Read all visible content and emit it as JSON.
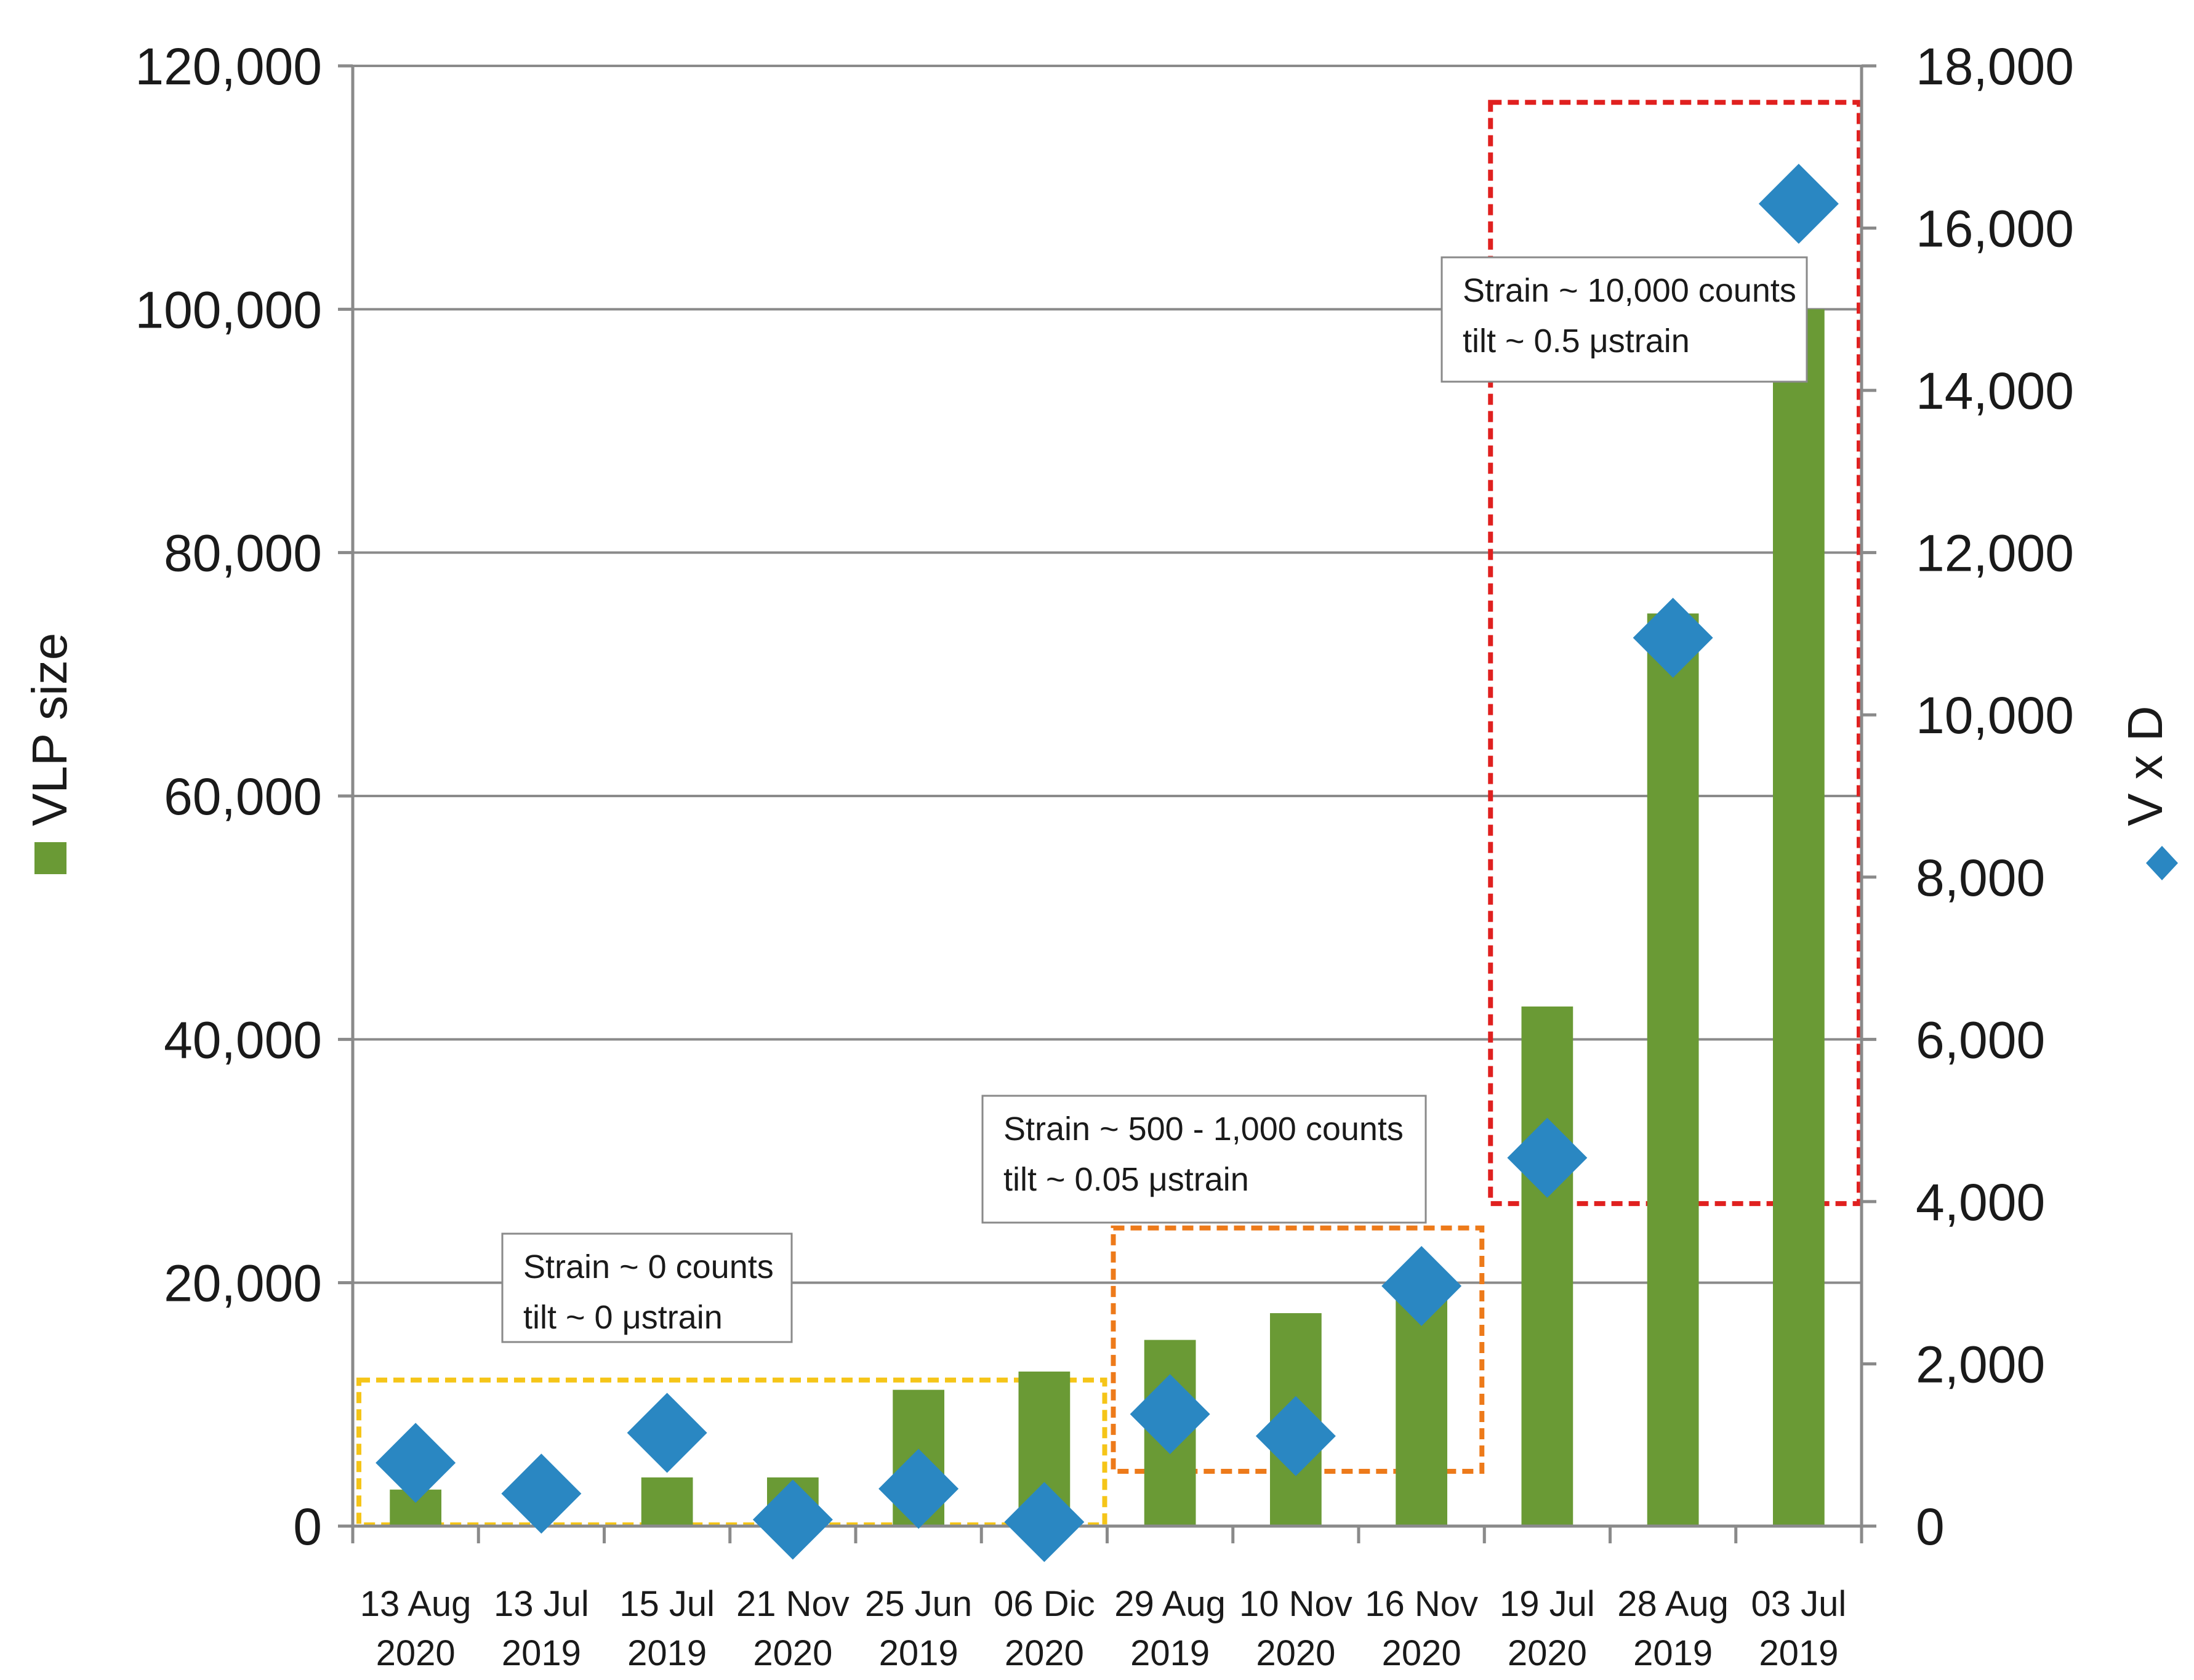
{
  "chart_data": {
    "type": "bar",
    "categories": [
      [
        "13 Aug",
        "2020"
      ],
      [
        "13 Jul",
        "2019"
      ],
      [
        "15 Jul",
        "2019"
      ],
      [
        "21 Nov",
        "2020"
      ],
      [
        "25 Jun",
        "2019"
      ],
      [
        "06 Dic",
        "2020"
      ],
      [
        "29 Aug",
        "2019"
      ],
      [
        "10 Nov",
        "2020"
      ],
      [
        "16 Nov",
        "2020"
      ],
      [
        "19 Jul",
        "2020"
      ],
      [
        "28 Aug",
        "2019"
      ],
      [
        "03 Jul",
        "2019"
      ]
    ],
    "series": [
      {
        "name": "VLP size",
        "type": "bar",
        "axis": "left",
        "color": "#6a9a35",
        "values": [
          3000,
          0,
          4000,
          4000,
          11200,
          12700,
          15300,
          17500,
          20000,
          42700,
          75000,
          100000
        ]
      },
      {
        "name": "V x D",
        "type": "scatter",
        "marker": "diamond",
        "axis": "right",
        "color": "#2a87c2",
        "values": [
          780,
          400,
          1150,
          80,
          460,
          50,
          1380,
          1110,
          2960,
          4540,
          10950,
          16300
        ]
      }
    ],
    "ylabel_left": "VLP size",
    "ylabel_right": "V x D",
    "ylim_left": [
      0,
      120000
    ],
    "ylim_right": [
      0,
      18000
    ],
    "yticks_left": [
      "0",
      "20,000",
      "40,000",
      "60,000",
      "80,000",
      "100,000",
      "120,000"
    ],
    "yticks_right": [
      "0",
      "2,000",
      "4,000",
      "6,000",
      "8,000",
      "10,000",
      "12,000",
      "14,000",
      "16,000",
      "18,000"
    ],
    "grid": true,
    "groups": [
      {
        "color": "#f5c518",
        "category_range": [
          0,
          5
        ],
        "y_range_left": [
          100,
          12000
        ],
        "label": [
          "Strain ~ 0 counts",
          "tilt ~ 0 μstrain"
        ]
      },
      {
        "color": "#ed7a1a",
        "category_range": [
          6,
          8
        ],
        "y_range_left": [
          4500,
          24500
        ],
        "label": [
          "Strain ~ 500 - 1,000 counts",
          "tilt ~ 0.05 μstrain"
        ]
      },
      {
        "color": "#e0201f",
        "category_range": [
          9,
          11
        ],
        "y_range_left": [
          26500,
          117000
        ],
        "label": [
          "Strain ~ 10,000 counts",
          "tilt ~ 0.5 μstrain"
        ]
      }
    ]
  }
}
